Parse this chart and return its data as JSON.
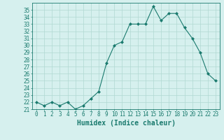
{
  "x": [
    0,
    1,
    2,
    3,
    4,
    5,
    6,
    7,
    8,
    9,
    10,
    11,
    12,
    13,
    14,
    15,
    16,
    17,
    18,
    19,
    20,
    21,
    22,
    23
  ],
  "y": [
    22.0,
    21.5,
    22.0,
    21.5,
    22.0,
    21.0,
    21.5,
    22.5,
    23.5,
    27.5,
    30.0,
    30.5,
    33.0,
    33.0,
    33.0,
    35.5,
    33.5,
    34.5,
    34.5,
    32.5,
    31.0,
    29.0,
    26.0,
    25.0
  ],
  "line_color": "#1a7a6e",
  "marker": "D",
  "marker_size": 2.0,
  "bg_color": "#d6f0ee",
  "grid_color": "#b0d8d2",
  "xlabel": "Humidex (Indice chaleur)",
  "ylim": [
    21,
    36
  ],
  "xlim": [
    -0.5,
    23.5
  ],
  "yticks": [
    21,
    22,
    23,
    24,
    25,
    26,
    27,
    28,
    29,
    30,
    31,
    32,
    33,
    34,
    35
  ],
  "xticks": [
    0,
    1,
    2,
    3,
    4,
    5,
    6,
    7,
    8,
    9,
    10,
    11,
    12,
    13,
    14,
    15,
    16,
    17,
    18,
    19,
    20,
    21,
    22,
    23
  ],
  "tick_color": "#1a7a6e",
  "label_color": "#1a7a6e",
  "spine_color": "#1a7a6e",
  "xlabel_fontsize": 7,
  "ytick_fontsize": 5.5,
  "xtick_fontsize": 5.5,
  "linewidth": 0.8
}
